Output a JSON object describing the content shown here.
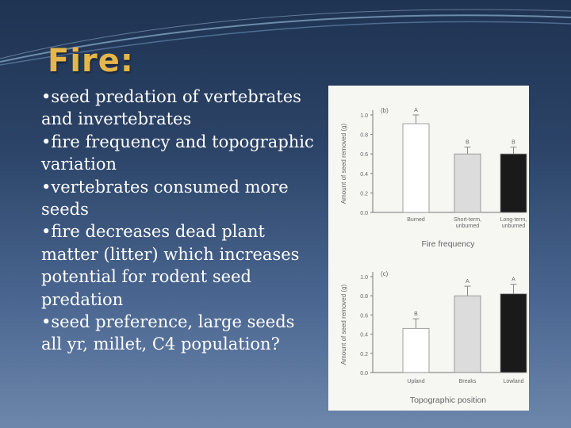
{
  "slide": {
    "title": "Fire:",
    "bullets": [
      "seed predation of vertebrates  and invertebrates",
      "fire frequency and topographic  variation",
      "vertebrates consumed more seeds",
      "fire decreases dead plant matter (litter) which increases  potential for rodent seed predation",
      "seed preference, large seeds all yr, millet, C4 population?"
    ]
  },
  "colors": {
    "background_top": "#1f3352",
    "background_bottom": "#6d86ab",
    "title": "#e5b64a",
    "bar_white": "#ffffff",
    "bar_gray": "#dcdcdc",
    "bar_black": "#1a1a1a"
  },
  "chart_data": [
    {
      "type": "bar",
      "panel_label": "(b)",
      "title": "",
      "xlabel": "Fire frequency",
      "ylabel": "Amount of seed removed (g)",
      "ylim": [
        0,
        1.0
      ],
      "yticks": [
        "0.0",
        "0.2",
        "0.4",
        "0.6",
        "0.8",
        "1.0"
      ],
      "categories": [
        "Burned",
        "Short-term, unburned",
        "Long-term, unburned"
      ],
      "category_lines": [
        [
          "Burned"
        ],
        [
          "Short-term,",
          "unburned"
        ],
        [
          "Long-term,",
          "unburned"
        ]
      ],
      "values": [
        0.91,
        0.6,
        0.6
      ],
      "errors": [
        0.09,
        0.07,
        0.07
      ],
      "letters": [
        "A",
        "B",
        "B"
      ],
      "bar_colors": [
        "#ffffff",
        "#dcdcdc",
        "#1a1a1a"
      ],
      "grid": false
    },
    {
      "type": "bar",
      "panel_label": "(c)",
      "title": "",
      "xlabel": "Topographic position",
      "ylabel": "Amount of seed removed (g)",
      "ylim": [
        0,
        1.0
      ],
      "yticks": [
        "0.0",
        "0.2",
        "0.4",
        "0.6",
        "0.8",
        "1.0"
      ],
      "categories": [
        "Upland",
        "Breaks",
        "Lowland"
      ],
      "category_lines": [
        [
          "Upland"
        ],
        [
          "Breaks"
        ],
        [
          "Lowland"
        ]
      ],
      "values": [
        0.46,
        0.8,
        0.82
      ],
      "errors": [
        0.1,
        0.1,
        0.1
      ],
      "letters": [
        "B",
        "A",
        "A"
      ],
      "bar_colors": [
        "#ffffff",
        "#dcdcdc",
        "#1a1a1a"
      ],
      "grid": false
    }
  ]
}
